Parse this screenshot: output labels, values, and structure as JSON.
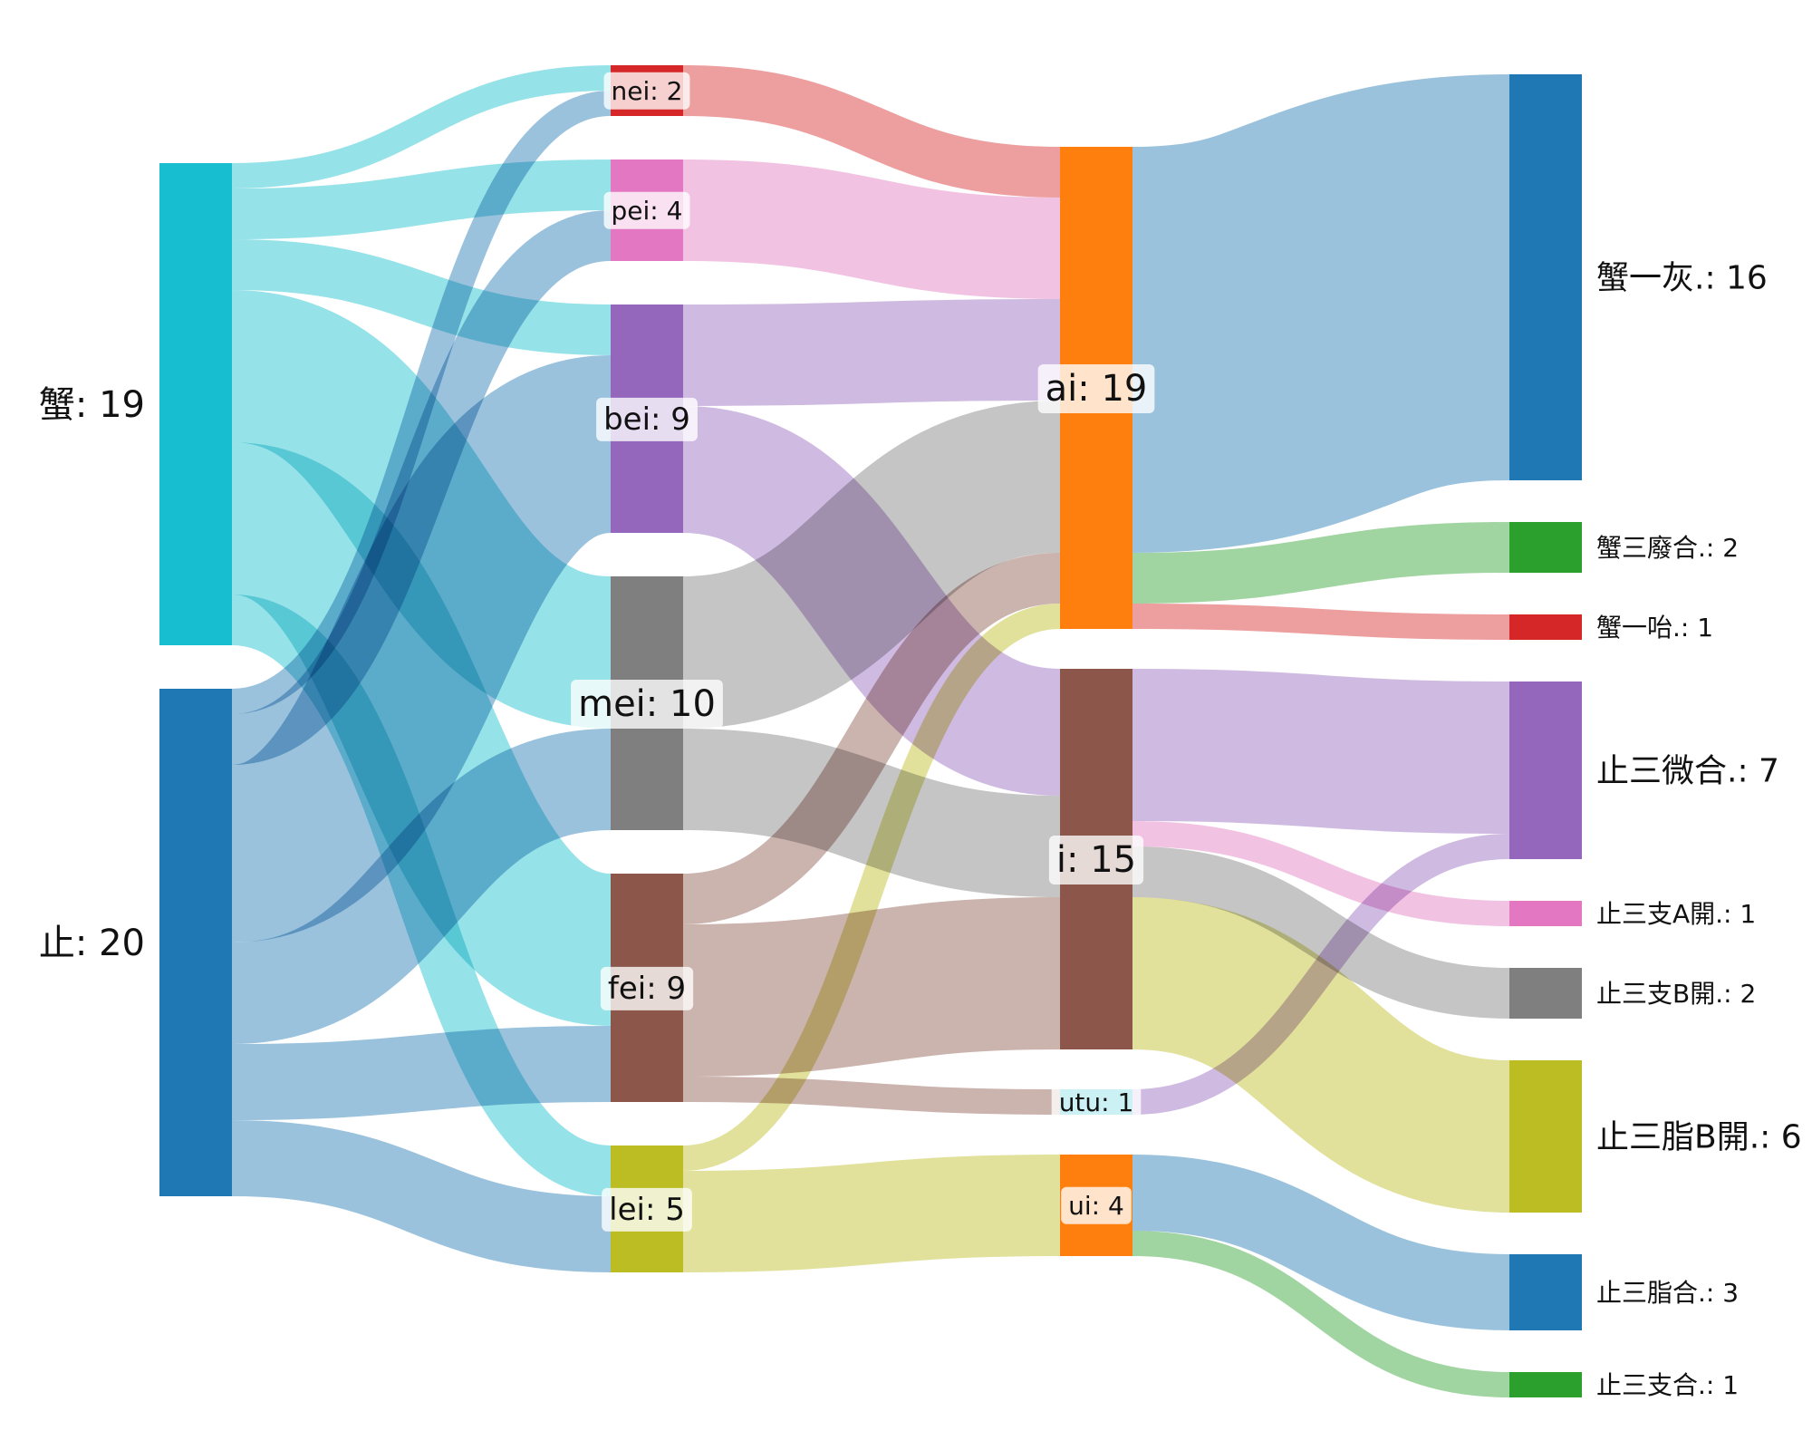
{
  "chart_data": {
    "type": "sankey",
    "unit_scale_note": "",
    "nodes": [
      {
        "id": "xie",
        "label": "蟹: 19",
        "value": 19,
        "color": "#17becf",
        "column": 0
      },
      {
        "id": "zhi",
        "label": "止: 20",
        "value": 20,
        "color": "#1f77b4",
        "column": 0
      },
      {
        "id": "nei",
        "label": "nei: 2",
        "value": 2,
        "color": "#d62728",
        "column": 1
      },
      {
        "id": "pei",
        "label": "pei: 4",
        "value": 4,
        "color": "#e377c2",
        "column": 1
      },
      {
        "id": "bei",
        "label": "bei: 9",
        "value": 9,
        "color": "#9467bd",
        "column": 1
      },
      {
        "id": "mei",
        "label": "mei: 10",
        "value": 10,
        "color": "#7f7f7f",
        "column": 1
      },
      {
        "id": "fei",
        "label": "fei: 9",
        "value": 9,
        "color": "#8c564b",
        "column": 1
      },
      {
        "id": "lei",
        "label": "lei: 5",
        "value": 5,
        "color": "#bcbd22",
        "column": 1
      },
      {
        "id": "ai",
        "label": "ai: 19",
        "value": 19,
        "color": "#ff7f0e",
        "column": 2
      },
      {
        "id": "i",
        "label": "i: 15",
        "value": 15,
        "color": "#8c564b",
        "column": 2
      },
      {
        "id": "utu",
        "label": "utu: 1",
        "value": 1,
        "color": "#17becf",
        "column": 2
      },
      {
        "id": "ui",
        "label": "ui: 4",
        "value": 4,
        "color": "#ff7f0e",
        "column": 2
      },
      {
        "id": "xyh",
        "label": "蟹一灰.: 16",
        "value": 16,
        "color": "#1f77b4",
        "column": 3
      },
      {
        "id": "xsfh",
        "label": "蟹三廢合.: 2",
        "value": 2,
        "color": "#2ca02c",
        "column": 3
      },
      {
        "id": "xyha",
        "label": "蟹一咍.: 1",
        "value": 1,
        "color": "#d62728",
        "column": 3
      },
      {
        "id": "zswh",
        "label": "止三微合.: 7",
        "value": 7,
        "color": "#9467bd",
        "column": 3
      },
      {
        "id": "zsza",
        "label": "止三支A開.: 1",
        "value": 1,
        "color": "#e377c2",
        "column": 3
      },
      {
        "id": "zszb",
        "label": "止三支B開.: 2",
        "value": 2,
        "color": "#7f7f7f",
        "column": 3
      },
      {
        "id": "zszhb",
        "label": "止三脂B開.: 6",
        "value": 6,
        "color": "#bcbd22",
        "column": 3
      },
      {
        "id": "zszhh",
        "label": "止三脂合.: 3",
        "value": 3,
        "color": "#1f77b4",
        "column": 3
      },
      {
        "id": "zszh",
        "label": "止三支合.: 1",
        "value": 1,
        "color": "#2ca02c",
        "column": 3
      }
    ],
    "links": [
      {
        "source": "xie",
        "target": "nei",
        "value": 1
      },
      {
        "source": "xie",
        "target": "pei",
        "value": 2
      },
      {
        "source": "xie",
        "target": "bei",
        "value": 2
      },
      {
        "source": "xie",
        "target": "mei",
        "value": 6
      },
      {
        "source": "xie",
        "target": "fei",
        "value": 6
      },
      {
        "source": "xie",
        "target": "lei",
        "value": 2
      },
      {
        "source": "zhi",
        "target": "nei",
        "value": 1
      },
      {
        "source": "zhi",
        "target": "pei",
        "value": 2
      },
      {
        "source": "zhi",
        "target": "bei",
        "value": 7
      },
      {
        "source": "zhi",
        "target": "mei",
        "value": 4
      },
      {
        "source": "zhi",
        "target": "fei",
        "value": 3
      },
      {
        "source": "zhi",
        "target": "lei",
        "value": 3
      },
      {
        "source": "nei",
        "target": "ai",
        "value": 2
      },
      {
        "source": "pei",
        "target": "ai",
        "value": 4
      },
      {
        "source": "bei",
        "target": "ai",
        "value": 4
      },
      {
        "source": "bei",
        "target": "i",
        "value": 5
      },
      {
        "source": "mei",
        "target": "ai",
        "value": 6
      },
      {
        "source": "mei",
        "target": "i",
        "value": 4
      },
      {
        "source": "fei",
        "target": "ai",
        "value": 2
      },
      {
        "source": "fei",
        "target": "i",
        "value": 6
      },
      {
        "source": "fei",
        "target": "utu",
        "value": 1
      },
      {
        "source": "lei",
        "target": "ai",
        "value": 1
      },
      {
        "source": "lei",
        "target": "ui",
        "value": 4
      },
      {
        "source": "ai",
        "target": "xyh",
        "value": 16
      },
      {
        "source": "ai",
        "target": "xsfh",
        "value": 2
      },
      {
        "source": "ai",
        "target": "xyha",
        "value": 1
      },
      {
        "source": "i",
        "target": "zswh",
        "value": 6
      },
      {
        "source": "i",
        "target": "zsza",
        "value": 1
      },
      {
        "source": "i",
        "target": "zszb",
        "value": 2
      },
      {
        "source": "i",
        "target": "zszhb",
        "value": 6
      },
      {
        "source": "utu",
        "target": "zswh",
        "value": 1
      },
      {
        "source": "ui",
        "target": "zszhh",
        "value": 3
      },
      {
        "source": "ui",
        "target": "zszh",
        "value": 1
      }
    ]
  }
}
